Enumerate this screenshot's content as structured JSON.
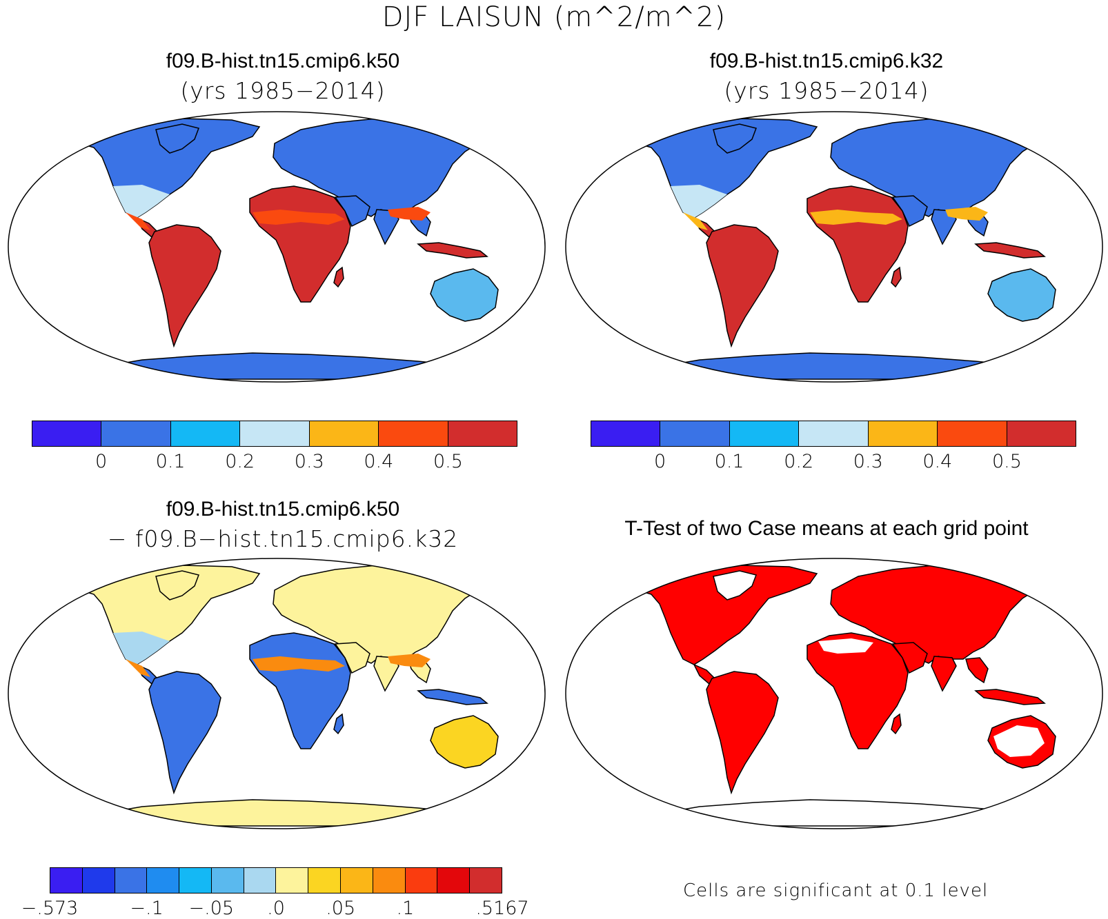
{
  "title": "DJF LAISUN (m^2/m^2)",
  "panels": {
    "tl": {
      "title": "f09.B-hist.tn15.cmip6.k50",
      "subtitle": "(yrs 1985−2014)"
    },
    "tr": {
      "title": "f09.B-hist.tn15.cmip6.k32",
      "subtitle": "(yrs 1985−2014)"
    },
    "bl": {
      "title": "f09.B-hist.tn15.cmip6.k50",
      "subtitle": "− f09.B−hist.tn15.cmip6.k32"
    },
    "br": {
      "title": "T-Test of two Case means at each grid point",
      "note": "Cells are significant at 0.1 level"
    }
  },
  "colorbar_top": {
    "colors": [
      "#3a1ef2",
      "#3a73e6",
      "#14b8f5",
      "#c6e6f5",
      "#fbb617",
      "#fa4a0f",
      "#d22d2d"
    ],
    "labels": [
      "0",
      "0.1",
      "0.2",
      "0.3",
      "0.4",
      "0.5"
    ]
  },
  "colorbar_diff": {
    "colors": [
      "#3a1ef2",
      "#1f3aeb",
      "#3a73e6",
      "#1f8cf0",
      "#14b8f5",
      "#5ab9ee",
      "#aad8f0",
      "#fdf39c",
      "#fbd522",
      "#fbb617",
      "#fa8b0f",
      "#fa3c0f",
      "#e3070b",
      "#d22d2d"
    ],
    "labels": [
      "−.573",
      "−.1",
      "−.05",
      ".0",
      ".05",
      ".1",
      ".5167"
    ]
  },
  "fills": {
    "ocean": "#ffffff",
    "tl": {
      "north": "#3a73e6",
      "mid": "#c6e6f5",
      "tropic": "#d22d2d",
      "orange": "#fa4a0f",
      "antarctica": "#3a73e6",
      "australia": "#5ab9ee"
    },
    "tr": {
      "north": "#3a73e6",
      "mid": "#c6e6f5",
      "tropic": "#d22d2d",
      "orange": "#fbb617",
      "antarctica": "#3a73e6",
      "australia": "#5ab9ee"
    },
    "bl": {
      "north": "#fdf39c",
      "mid": "#aad8f0",
      "tropic": "#3a73e6",
      "orange": "#fa8b0f",
      "antarctica": "#fdf39c",
      "australia": "#fbd522"
    },
    "br": {
      "sig": "#ff0000"
    }
  }
}
